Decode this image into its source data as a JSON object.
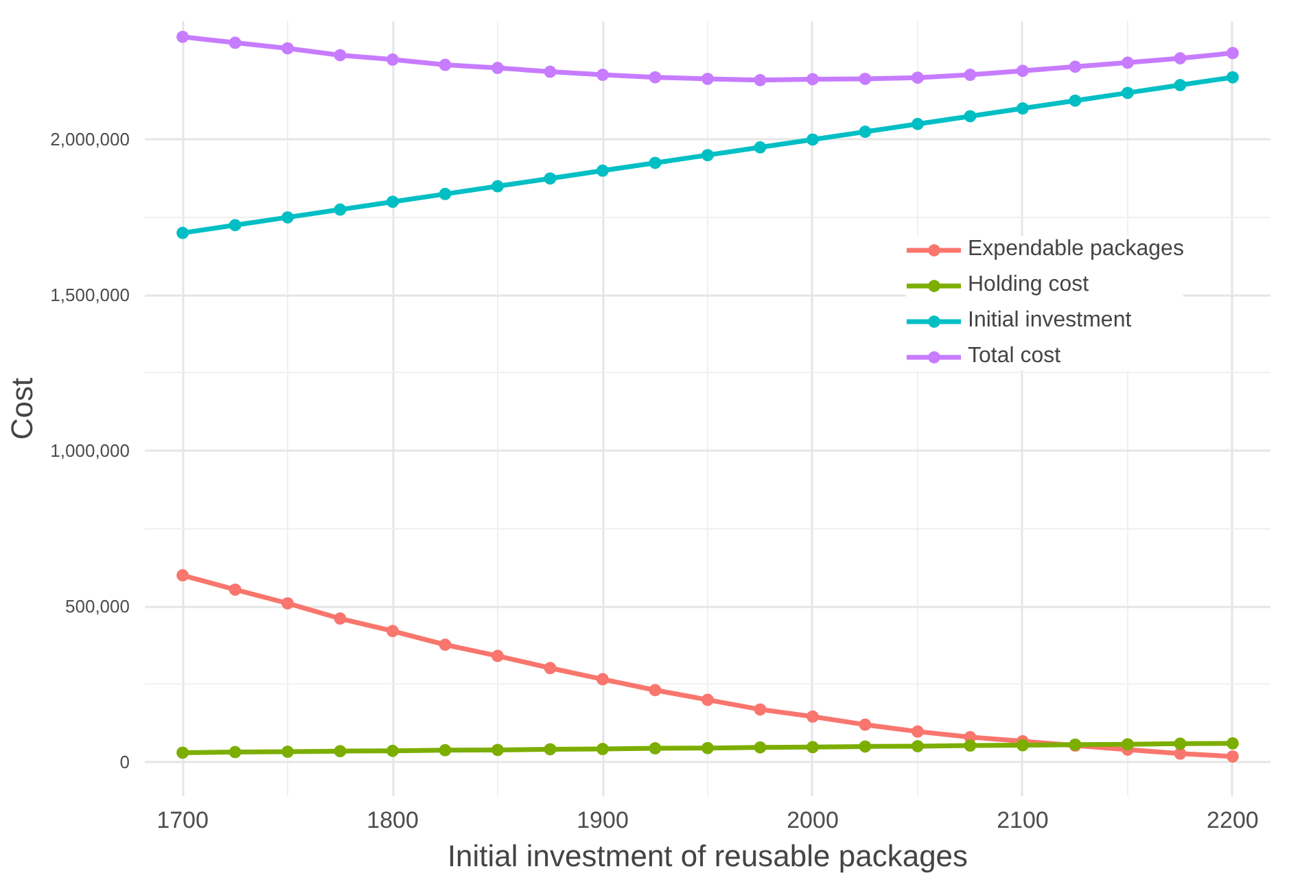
{
  "chart_data": {
    "type": "line",
    "xlabel": "Initial investment of reusable packages",
    "ylabel": "Cost",
    "x": [
      1700,
      1725,
      1750,
      1775,
      1800,
      1825,
      1850,
      1875,
      1900,
      1925,
      1950,
      1975,
      2000,
      2025,
      2050,
      2075,
      2100,
      2125,
      2150,
      2175,
      2200
    ],
    "series": [
      {
        "name": "Expendable packages",
        "color": "#f8766d",
        "values": [
          600000,
          554000,
          510000,
          461000,
          421000,
          377000,
          341000,
          302000,
          266000,
          231000,
          200000,
          169000,
          146000,
          120000,
          98000,
          80000,
          67000,
          53000,
          40000,
          27000,
          18000
        ]
      },
      {
        "name": "Holding cost",
        "color": "#7cae00",
        "values": [
          30000,
          32000,
          33000,
          35000,
          36000,
          38000,
          39000,
          41000,
          42000,
          44000,
          45000,
          47000,
          48000,
          50000,
          51000,
          53000,
          54000,
          56000,
          57000,
          59000,
          60000
        ]
      },
      {
        "name": "Initial investment",
        "color": "#00bfc4",
        "values": [
          1700000,
          1725000,
          1750000,
          1775000,
          1800000,
          1825000,
          1850000,
          1875000,
          1900000,
          1925000,
          1950000,
          1975000,
          2000000,
          2025000,
          2050000,
          2075000,
          2100000,
          2125000,
          2150000,
          2175000,
          2200000
        ]
      },
      {
        "name": "Total cost",
        "color": "#c77cff",
        "values": [
          2330000,
          2311000,
          2293000,
          2271000,
          2257000,
          2240000,
          2230000,
          2218000,
          2208000,
          2200000,
          2195000,
          2191000,
          2194000,
          2195000,
          2199000,
          2208000,
          2221000,
          2234000,
          2247000,
          2261000,
          2278000
        ]
      }
    ],
    "xlim": [
      1682,
      2218
    ],
    "ylim": [
      -110000,
      2380000
    ],
    "xticks": [
      1700,
      1800,
      1900,
      2000,
      2100,
      2200
    ],
    "yticks": [
      {
        "value": 0,
        "label": "0"
      },
      {
        "value": 500000,
        "label": "500,000"
      },
      {
        "value": 1000000,
        "label": "1,000,000"
      },
      {
        "value": 1500000,
        "label": "1,500,000"
      },
      {
        "value": 2000000,
        "label": "2,000,000"
      }
    ],
    "grid": true,
    "legend": "right",
    "marker": "circle",
    "line_style": "solid"
  }
}
